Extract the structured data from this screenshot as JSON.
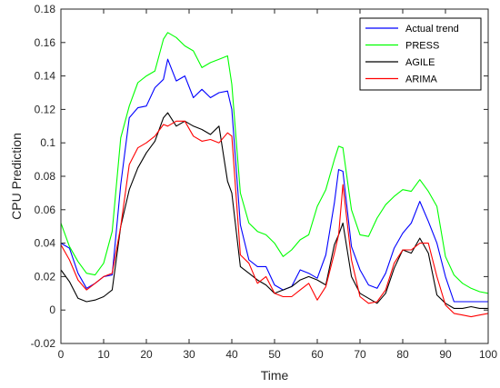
{
  "chart_data": {
    "type": "line",
    "title": "",
    "xlabel": "Time",
    "ylabel": "CPU Prediction",
    "xlim": [
      0,
      100
    ],
    "ylim": [
      -0.02,
      0.18
    ],
    "xticks": [
      0,
      10,
      20,
      30,
      40,
      50,
      60,
      70,
      80,
      90,
      100
    ],
    "yticks": [
      -0.02,
      0,
      0.02,
      0.04,
      0.06,
      0.08,
      0.1,
      0.12,
      0.14,
      0.16,
      0.18
    ],
    "ytick_labels": [
      "-0.02",
      "0",
      "0.02",
      "0.04",
      "0.06",
      "0.08",
      "0.1",
      "0.12",
      "0.14",
      "0.16",
      "0.18"
    ],
    "legend_position": "top-right",
    "grid": false,
    "series": [
      {
        "name": "Actual trend",
        "color": "#0000ff",
        "points": [
          [
            0,
            0.04
          ],
          [
            2,
            0.037
          ],
          [
            4,
            0.022
          ],
          [
            6,
            0.013
          ],
          [
            8,
            0.016
          ],
          [
            10,
            0.02
          ],
          [
            12,
            0.021
          ],
          [
            14,
            0.075
          ],
          [
            16,
            0.115
          ],
          [
            18,
            0.121
          ],
          [
            20,
            0.122
          ],
          [
            22,
            0.133
          ],
          [
            24,
            0.138
          ],
          [
            25,
            0.15
          ],
          [
            27,
            0.137
          ],
          [
            29,
            0.14
          ],
          [
            31,
            0.127
          ],
          [
            33,
            0.132
          ],
          [
            35,
            0.127
          ],
          [
            37,
            0.13
          ],
          [
            39,
            0.131
          ],
          [
            40,
            0.12
          ],
          [
            42,
            0.051
          ],
          [
            44,
            0.03
          ],
          [
            46,
            0.026
          ],
          [
            48,
            0.026
          ],
          [
            50,
            0.015
          ],
          [
            52,
            0.012
          ],
          [
            54,
            0.014
          ],
          [
            56,
            0.024
          ],
          [
            58,
            0.022
          ],
          [
            60,
            0.019
          ],
          [
            62,
            0.033
          ],
          [
            64,
            0.064
          ],
          [
            65,
            0.084
          ],
          [
            66,
            0.083
          ],
          [
            68,
            0.038
          ],
          [
            70,
            0.024
          ],
          [
            72,
            0.015
          ],
          [
            74,
            0.013
          ],
          [
            76,
            0.022
          ],
          [
            78,
            0.037
          ],
          [
            80,
            0.046
          ],
          [
            82,
            0.052
          ],
          [
            84,
            0.065
          ],
          [
            86,
            0.053
          ],
          [
            88,
            0.04
          ],
          [
            90,
            0.02
          ],
          [
            92,
            0.005
          ],
          [
            94,
            0.005
          ],
          [
            96,
            0.005
          ],
          [
            98,
            0.005
          ],
          [
            100,
            0.005
          ]
        ]
      },
      {
        "name": "PRESS",
        "color": "#00ff00",
        "points": [
          [
            0,
            0.052
          ],
          [
            2,
            0.038
          ],
          [
            4,
            0.029
          ],
          [
            6,
            0.022
          ],
          [
            8,
            0.021
          ],
          [
            10,
            0.028
          ],
          [
            12,
            0.047
          ],
          [
            14,
            0.103
          ],
          [
            16,
            0.122
          ],
          [
            18,
            0.136
          ],
          [
            20,
            0.14
          ],
          [
            22,
            0.143
          ],
          [
            24,
            0.162
          ],
          [
            25,
            0.166
          ],
          [
            27,
            0.163
          ],
          [
            29,
            0.158
          ],
          [
            31,
            0.155
          ],
          [
            33,
            0.145
          ],
          [
            35,
            0.148
          ],
          [
            37,
            0.15
          ],
          [
            39,
            0.152
          ],
          [
            40,
            0.135
          ],
          [
            42,
            0.07
          ],
          [
            44,
            0.052
          ],
          [
            46,
            0.047
          ],
          [
            48,
            0.045
          ],
          [
            50,
            0.04
          ],
          [
            52,
            0.032
          ],
          [
            54,
            0.036
          ],
          [
            56,
            0.042
          ],
          [
            58,
            0.045
          ],
          [
            60,
            0.062
          ],
          [
            62,
            0.072
          ],
          [
            64,
            0.09
          ],
          [
            65,
            0.098
          ],
          [
            66,
            0.097
          ],
          [
            68,
            0.06
          ],
          [
            70,
            0.045
          ],
          [
            72,
            0.044
          ],
          [
            74,
            0.055
          ],
          [
            76,
            0.063
          ],
          [
            78,
            0.068
          ],
          [
            80,
            0.072
          ],
          [
            82,
            0.071
          ],
          [
            84,
            0.078
          ],
          [
            86,
            0.071
          ],
          [
            88,
            0.062
          ],
          [
            90,
            0.032
          ],
          [
            92,
            0.021
          ],
          [
            94,
            0.016
          ],
          [
            96,
            0.013
          ],
          [
            98,
            0.011
          ],
          [
            100,
            0.01
          ]
        ]
      },
      {
        "name": "AGILE",
        "color": "#000000",
        "points": [
          [
            0,
            0.024
          ],
          [
            2,
            0.017
          ],
          [
            4,
            0.007
          ],
          [
            6,
            0.005
          ],
          [
            8,
            0.006
          ],
          [
            10,
            0.008
          ],
          [
            12,
            0.012
          ],
          [
            14,
            0.05
          ],
          [
            16,
            0.072
          ],
          [
            18,
            0.085
          ],
          [
            20,
            0.094
          ],
          [
            22,
            0.101
          ],
          [
            24,
            0.115
          ],
          [
            25,
            0.118
          ],
          [
            27,
            0.11
          ],
          [
            29,
            0.113
          ],
          [
            31,
            0.11
          ],
          [
            33,
            0.108
          ],
          [
            35,
            0.105
          ],
          [
            37,
            0.11
          ],
          [
            39,
            0.077
          ],
          [
            40,
            0.07
          ],
          [
            42,
            0.026
          ],
          [
            44,
            0.022
          ],
          [
            46,
            0.018
          ],
          [
            48,
            0.015
          ],
          [
            50,
            0.01
          ],
          [
            52,
            0.012
          ],
          [
            54,
            0.014
          ],
          [
            56,
            0.018
          ],
          [
            58,
            0.02
          ],
          [
            60,
            0.018
          ],
          [
            62,
            0.015
          ],
          [
            64,
            0.039
          ],
          [
            65,
            0.045
          ],
          [
            66,
            0.052
          ],
          [
            68,
            0.02
          ],
          [
            70,
            0.01
          ],
          [
            72,
            0.007
          ],
          [
            74,
            0.004
          ],
          [
            76,
            0.01
          ],
          [
            78,
            0.025
          ],
          [
            80,
            0.036
          ],
          [
            82,
            0.034
          ],
          [
            84,
            0.043
          ],
          [
            86,
            0.034
          ],
          [
            88,
            0.009
          ],
          [
            90,
            0.004
          ],
          [
            92,
            0.001
          ],
          [
            94,
            0.001
          ],
          [
            96,
            0.002
          ],
          [
            98,
            0.001
          ],
          [
            100,
            0.001
          ]
        ]
      },
      {
        "name": "ARIMA",
        "color": "#ff0000",
        "points": [
          [
            0,
            0.039
          ],
          [
            2,
            0.03
          ],
          [
            4,
            0.018
          ],
          [
            6,
            0.012
          ],
          [
            8,
            0.016
          ],
          [
            10,
            0.02
          ],
          [
            12,
            0.022
          ],
          [
            14,
            0.05
          ],
          [
            16,
            0.087
          ],
          [
            18,
            0.097
          ],
          [
            20,
            0.1
          ],
          [
            22,
            0.104
          ],
          [
            24,
            0.111
          ],
          [
            25,
            0.11
          ],
          [
            27,
            0.113
          ],
          [
            29,
            0.113
          ],
          [
            31,
            0.104
          ],
          [
            33,
            0.101
          ],
          [
            35,
            0.102
          ],
          [
            37,
            0.1
          ],
          [
            39,
            0.106
          ],
          [
            40,
            0.104
          ],
          [
            42,
            0.033
          ],
          [
            44,
            0.028
          ],
          [
            46,
            0.016
          ],
          [
            48,
            0.02
          ],
          [
            50,
            0.01
          ],
          [
            52,
            0.008
          ],
          [
            54,
            0.008
          ],
          [
            56,
            0.012
          ],
          [
            58,
            0.016
          ],
          [
            60,
            0.006
          ],
          [
            62,
            0.014
          ],
          [
            64,
            0.034
          ],
          [
            65,
            0.045
          ],
          [
            66,
            0.075
          ],
          [
            68,
            0.03
          ],
          [
            70,
            0.008
          ],
          [
            72,
            0.004
          ],
          [
            74,
            0.005
          ],
          [
            76,
            0.012
          ],
          [
            78,
            0.028
          ],
          [
            80,
            0.036
          ],
          [
            82,
            0.036
          ],
          [
            84,
            0.04
          ],
          [
            86,
            0.04
          ],
          [
            88,
            0.02
          ],
          [
            90,
            0.003
          ],
          [
            92,
            -0.002
          ],
          [
            94,
            -0.003
          ],
          [
            96,
            -0.004
          ],
          [
            98,
            -0.003
          ],
          [
            100,
            -0.002
          ]
        ]
      }
    ]
  }
}
